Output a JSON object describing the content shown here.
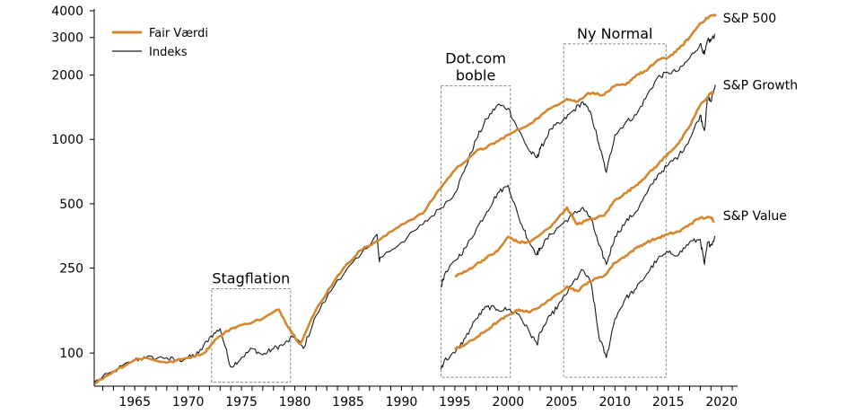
{
  "chart_data": {
    "type": "line",
    "title": "",
    "xlabel": "",
    "ylabel": "",
    "yscale": "log",
    "ylim": [
      70,
      4000
    ],
    "xlim": [
      1961.2,
      2021.5
    ],
    "x_ticks": [
      {
        "value": 1965,
        "label": "1965"
      },
      {
        "value": 1970,
        "label": "1970"
      },
      {
        "value": 1975,
        "label": "1975"
      },
      {
        "value": 1980,
        "label": "1980"
      },
      {
        "value": 1985,
        "label": "1985"
      },
      {
        "value": 1990,
        "label": "1990"
      },
      {
        "value": 1995,
        "label": "1995"
      },
      {
        "value": 2000,
        "label": "2000"
      },
      {
        "value": 2005,
        "label": "2005"
      },
      {
        "value": 2010,
        "label": "2010"
      },
      {
        "value": 2015,
        "label": "2015"
      },
      {
        "value": 2020,
        "label": "2020"
      }
    ],
    "y_ticks": [
      {
        "value": 100,
        "label": "100"
      },
      {
        "value": 250,
        "label": "250"
      },
      {
        "value": 500,
        "label": "500"
      },
      {
        "value": 1000,
        "label": "1000"
      },
      {
        "value": 2000,
        "label": "2000"
      },
      {
        "value": 3000,
        "label": "3000"
      },
      {
        "value": 4000,
        "label": "4000"
      }
    ],
    "legend": {
      "position": "top-left",
      "entries": [
        {
          "label": "Fair Værdi",
          "color": "#d4872e"
        },
        {
          "label": "Indeks",
          "color": "#1a1a1a"
        }
      ]
    },
    "colors": {
      "fair_value": "#d4872e",
      "index": "#1a1a1a",
      "box": "#888888"
    },
    "series": [
      {
        "name": "S&P 500",
        "kind": "Fair Værdi",
        "x": [
          1961.2,
          1963,
          1965,
          1966,
          1968,
          1970,
          1971.5,
          1972.5,
          1974,
          1975,
          1977,
          1978.5,
          1979.5,
          1980.5,
          1982,
          1984,
          1986,
          1988,
          1990,
          1992,
          1993.5,
          1995,
          1997,
          1998,
          1999,
          2000,
          2002,
          2004,
          2005.5,
          2006.5,
          2007.5,
          2009,
          2010,
          2011,
          2012,
          2013,
          2014,
          2015,
          2016,
          2017,
          2018,
          2019,
          2019.5
        ],
        "values": [
          72,
          82,
          93,
          95,
          90,
          95,
          100,
          115,
          130,
          135,
          145,
          160,
          130,
          110,
          160,
          230,
          300,
          340,
          400,
          450,
          580,
          720,
          880,
          920,
          980,
          1050,
          1180,
          1400,
          1550,
          1500,
          1650,
          1620,
          1780,
          1800,
          2000,
          2100,
          2350,
          2420,
          2650,
          3000,
          3500,
          3800,
          3800
        ]
      },
      {
        "name": "S&P 500",
        "kind": "Indeks",
        "x": [
          1961.2,
          1963,
          1965,
          1966,
          1968,
          1969,
          1970,
          1971,
          1972,
          1973,
          1974,
          1975,
          1976,
          1977,
          1978,
          1979,
          1980,
          1980.8,
          1982,
          1984,
          1986,
          1987.7,
          1987.9,
          1988,
          1990,
          1992,
          1993.5,
          1995,
          1996,
          1997,
          1998,
          1999,
          2000,
          2001,
          2002,
          2002.7,
          2003,
          2004,
          2005,
          2006,
          2007,
          2007.8,
          2008.5,
          2009.2,
          2010,
          2011,
          2012,
          2013,
          2014,
          2015,
          2016,
          2017,
          2018,
          2018.4,
          2018.7,
          2019,
          2019.4
        ],
        "values": [
          73,
          82,
          93,
          95,
          95,
          92,
          95,
          100,
          118,
          130,
          86,
          95,
          105,
          98,
          105,
          110,
          120,
          105,
          150,
          220,
          280,
          360,
          270,
          280,
          330,
          400,
          470,
          560,
          740,
          1000,
          1250,
          1450,
          1400,
          1100,
          880,
          820,
          900,
          1120,
          1200,
          1350,
          1500,
          1300,
          950,
          700,
          1050,
          1200,
          1300,
          1600,
          1950,
          2050,
          2100,
          2400,
          2800,
          2500,
          2900,
          2900,
          3100
        ]
      },
      {
        "name": "S&P Growth",
        "kind": "Fair Værdi",
        "x": [
          1995,
          1996,
          1997,
          1998,
          1999,
          2000,
          2001,
          2002,
          2004,
          2005.5,
          2006.5,
          2007.5,
          2009,
          2010,
          2011,
          2012,
          2013,
          2014,
          2015,
          2016,
          2017,
          2018,
          2019,
          2019.3
        ],
        "values": [
          230,
          240,
          260,
          280,
          300,
          350,
          330,
          330,
          390,
          480,
          400,
          420,
          440,
          520,
          560,
          610,
          680,
          760,
          860,
          960,
          1150,
          1450,
          1650,
          1650
        ]
      },
      {
        "name": "S&P Growth",
        "kind": "Indeks",
        "x": [
          1993.7,
          1994,
          1995,
          1996,
          1997,
          1998,
          1999,
          2000,
          2001,
          2002,
          2002.7,
          2003,
          2004,
          2005,
          2006,
          2007,
          2007.8,
          2008.5,
          2009.2,
          2010,
          2011,
          2012,
          2013,
          2014,
          2015,
          2016,
          2017,
          2018,
          2018.4,
          2018.7,
          2019,
          2019.4
        ],
        "values": [
          205,
          230,
          270,
          310,
          380,
          460,
          560,
          610,
          430,
          330,
          290,
          310,
          360,
          400,
          440,
          480,
          420,
          320,
          260,
          350,
          410,
          460,
          560,
          680,
          760,
          840,
          1000,
          1300,
          1100,
          1600,
          1500,
          1800
        ]
      },
      {
        "name": "S&P Value",
        "kind": "Fair Værdi",
        "x": [
          1995,
          1996,
          1997,
          1998,
          1999,
          2000,
          2001,
          2002,
          2004,
          2005.5,
          2006.5,
          2007.5,
          2009,
          2010,
          2011,
          2012,
          2013,
          2014,
          2015,
          2016,
          2017,
          2018,
          2019,
          2019.3
        ],
        "values": [
          104,
          110,
          118,
          128,
          140,
          150,
          160,
          155,
          178,
          205,
          195,
          215,
          230,
          265,
          285,
          310,
          330,
          345,
          360,
          370,
          400,
          430,
          430,
          415
        ]
      },
      {
        "name": "S&P Value",
        "kind": "Indeks",
        "x": [
          1993.7,
          1994,
          1995,
          1996,
          1997,
          1998,
          1999,
          2000,
          2001,
          2002,
          2002.7,
          2003,
          2004,
          2005,
          2006,
          2007,
          2007.8,
          2008.5,
          2009.2,
          2010,
          2011,
          2012,
          2013,
          2014,
          2015,
          2016,
          2017,
          2018,
          2018.4,
          2018.7,
          2019,
          2019.4
        ],
        "values": [
          84,
          92,
          100,
          118,
          145,
          165,
          160,
          160,
          152,
          125,
          110,
          125,
          150,
          175,
          210,
          245,
          210,
          120,
          95,
          145,
          180,
          200,
          235,
          275,
          295,
          290,
          330,
          340,
          260,
          330,
          320,
          350
        ]
      }
    ],
    "series_labels": [
      {
        "text": "S&P 500",
        "x": 2019.8,
        "y": 3700
      },
      {
        "text": "S&P Growth",
        "x": 2019.8,
        "y": 1800
      },
      {
        "text": "S&P Value",
        "x": 2019.8,
        "y": 440
      }
    ],
    "annotations": [
      {
        "text": "Stagflation",
        "x0": 1972.2,
        "x1": 1979.6,
        "y0": 73,
        "y1": 200,
        "label_lines": [
          "Stagflation"
        ]
      },
      {
        "text": "Dot.com boble",
        "x0": 1993.7,
        "x1": 2000.2,
        "y0": 77,
        "y1": 1780,
        "label_lines": [
          "Dot.com",
          "boble"
        ]
      },
      {
        "text": "Ny Normal",
        "x0": 2005.2,
        "x1": 2014.8,
        "y0": 77,
        "y1": 2800,
        "label_lines": [
          "Ny Normal"
        ]
      }
    ]
  }
}
